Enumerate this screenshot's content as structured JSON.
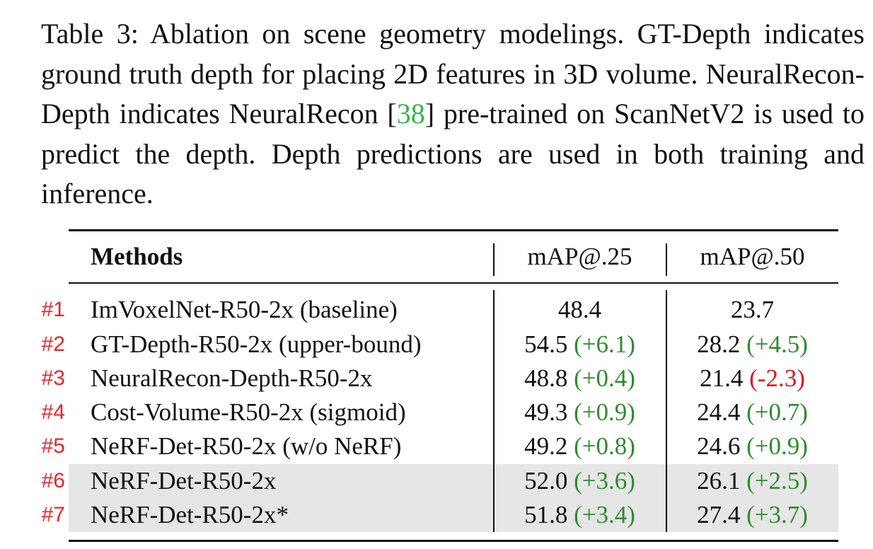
{
  "caption": {
    "text_before": "Table 3: Ablation on scene geometry modelings. GT-Depth indicates ground truth depth for placing 2D features in 3D volume.  NeuralRecon-Depth indicates NeuralRecon [",
    "citation": "38",
    "text_after": "] pre-trained on ScanNetV2 is used to predict the depth. Depth predictions are used in both training and inference."
  },
  "table": {
    "headers": [
      "Methods",
      "mAP@.25",
      "mAP@.50"
    ],
    "rows": [
      {
        "id": "#1",
        "method": "ImVoxelNet-R50-2x (baseline)",
        "map25": "48.4",
        "d25": "",
        "map50": "23.7",
        "d50": ""
      },
      {
        "id": "#2",
        "method": "GT-Depth-R50-2x (upper-bound)",
        "map25": "54.5",
        "d25": "(+6.1)",
        "map50": "28.2",
        "d50": "(+4.5)"
      },
      {
        "id": "#3",
        "method": "NeuralRecon-Depth-R50-2x",
        "map25": "48.8",
        "d25": "(+0.4)",
        "map50": "21.4",
        "d50": "(-2.3)"
      },
      {
        "id": "#4",
        "method": "Cost-Volume-R50-2x (sigmoid)",
        "map25": "49.3",
        "d25": "(+0.9)",
        "map50": "24.4",
        "d50": "(+0.7)"
      },
      {
        "id": "#5",
        "method": "NeRF-Det-R50-2x (w/o NeRF)",
        "map25": "49.2",
        "d25": "(+0.8)",
        "map50": "24.6",
        "d50": "(+0.9)"
      },
      {
        "id": "#6",
        "method": "NeRF-Det-R50-2x",
        "map25": "52.0",
        "d25": "(+3.6)",
        "map50": "26.1",
        "d50": "(+2.5)"
      },
      {
        "id": "#7",
        "method": "NeRF-Det-R50-2x*",
        "map25": "51.8",
        "d25": "(+3.4)",
        "map50": "27.4",
        "d50": "(+3.7)"
      }
    ]
  },
  "colors": {
    "positive_delta": "#2e8b2e",
    "negative_delta": "#e0141c",
    "row_id": "#e8252a",
    "citation": "#2fb84a",
    "highlight_rows": "#e6e6e6"
  }
}
